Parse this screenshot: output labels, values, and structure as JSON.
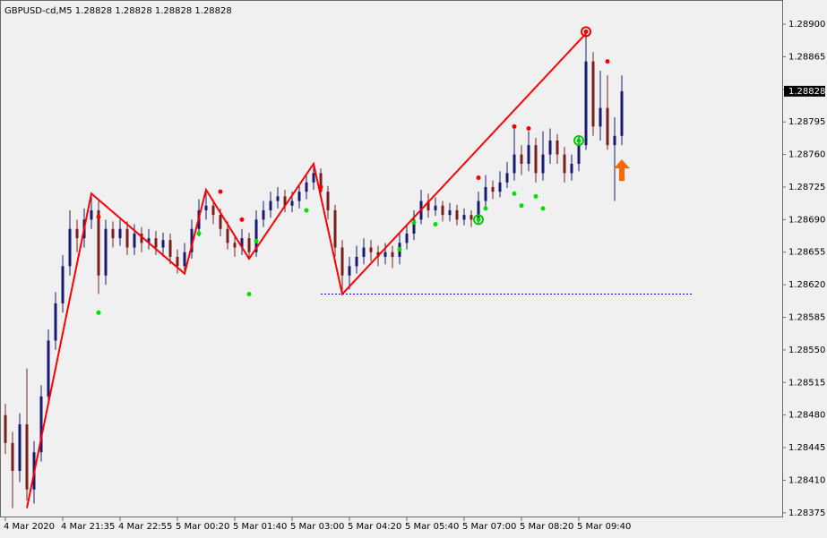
{
  "chart_data": {
    "type": "candlestick",
    "title": "GBPUSD-cd,M5  1.28828 1.28828 1.28828 1.28828",
    "categories": [
      "4 Mar 2020",
      null,
      null,
      null,
      null,
      null,
      null,
      null,
      "4 Mar 21:35",
      null,
      null,
      null,
      null,
      null,
      null,
      null,
      "4 Mar 22:55",
      null,
      null,
      null,
      null,
      null,
      null,
      null,
      "5 Mar 00:20",
      null,
      null,
      null,
      null,
      null,
      null,
      null,
      "5 Mar 01:40",
      null,
      null,
      null,
      null,
      null,
      null,
      null,
      "5 Mar 03:00",
      null,
      null,
      null,
      null,
      null,
      null,
      null,
      "5 Mar 04:20",
      null,
      null,
      null,
      null,
      null,
      null,
      null,
      "5 Mar 05:40",
      null,
      null,
      null,
      null,
      null,
      null,
      null,
      "5 Mar 07:00",
      null,
      null,
      null,
      null,
      null,
      null,
      null,
      "5 Mar 08:20",
      null,
      null,
      null,
      null,
      null,
      null,
      null,
      "5 Mar 09:40",
      null,
      null,
      null,
      null,
      null,
      null
    ],
    "open": [
      1.2848,
      1.2845,
      1.2842,
      1.2847,
      1.284,
      1.2844,
      1.285,
      1.2856,
      1.286,
      1.2864,
      1.2868,
      1.2867,
      1.2869,
      1.287,
      1.2863,
      1.2868,
      1.2867,
      1.2868,
      1.2866,
      1.28675,
      1.28665,
      1.2867,
      1.2866,
      1.28668,
      1.2865,
      1.2864,
      1.28655,
      1.2868,
      1.287,
      1.28705,
      1.28695,
      1.2868,
      1.28665,
      1.2866,
      1.2867,
      1.28655,
      1.2869,
      1.287,
      1.2871,
      1.28715,
      1.28705,
      1.2871,
      1.2872,
      1.2873,
      1.2874,
      1.2872,
      1.287,
      1.2866,
      1.2863,
      1.2864,
      1.2865,
      1.2866,
      1.28655,
      1.2865,
      1.28655,
      1.2865,
      1.28665,
      1.28675,
      1.2869,
      1.2871,
      1.287,
      1.28705,
      1.28695,
      1.287,
      1.2869,
      1.28695,
      1.2869,
      1.2871,
      1.28725,
      1.2872,
      1.2873,
      1.2874,
      1.2876,
      1.2875,
      1.2877,
      1.2874,
      1.2876,
      1.28775,
      1.2876,
      1.2874,
      1.2875,
      1.2877,
      1.2886,
      1.2879,
      1.2881,
      1.2877,
      1.2878
    ],
    "high": [
      1.28492,
      1.28462,
      1.28482,
      1.2853,
      1.28452,
      1.28512,
      1.28572,
      1.28612,
      1.28652,
      1.287,
      1.2869,
      1.28702,
      1.28718,
      1.2871,
      1.2869,
      1.28688,
      1.2869,
      1.28688,
      1.28685,
      1.28682,
      1.2868,
      1.28678,
      1.28676,
      1.28675,
      1.28658,
      1.28665,
      1.2869,
      1.28712,
      1.28722,
      1.28712,
      1.28702,
      1.28688,
      1.28672,
      1.2868,
      1.28676,
      1.287,
      1.2871,
      1.2872,
      1.28725,
      1.28722,
      1.2872,
      1.28728,
      1.2874,
      1.2875,
      1.28745,
      1.28726,
      1.28706,
      1.28668,
      1.2865,
      1.28662,
      1.2867,
      1.28668,
      1.28662,
      1.28665,
      1.28662,
      1.28675,
      1.28685,
      1.287,
      1.28722,
      1.28718,
      1.28714,
      1.2871,
      1.28708,
      1.28706,
      1.28702,
      1.287,
      1.2872,
      1.28738,
      1.28732,
      1.28742,
      1.28752,
      1.28788,
      1.2877,
      1.28785,
      1.28778,
      1.28785,
      1.28788,
      1.28782,
      1.28768,
      1.2876,
      1.2878,
      1.2889,
      1.2887,
      1.2885,
      1.28845,
      1.288,
      1.28845
    ],
    "low": [
      1.28438,
      1.2838,
      1.28408,
      1.28388,
      1.28385,
      1.2843,
      1.2849,
      1.2855,
      1.2859,
      1.2863,
      1.28655,
      1.2866,
      1.2868,
      1.2861,
      1.2862,
      1.2866,
      1.28662,
      1.28652,
      1.28652,
      1.28655,
      1.28658,
      1.28652,
      1.2865,
      1.28642,
      1.28632,
      1.28632,
      1.28648,
      1.28672,
      1.2869,
      1.28685,
      1.28672,
      1.28658,
      1.2865,
      1.28652,
      1.28648,
      1.2865,
      1.28682,
      1.28692,
      1.28702,
      1.28698,
      1.28698,
      1.28702,
      1.28712,
      1.28722,
      1.28712,
      1.2869,
      1.2865,
      1.2861,
      1.28615,
      1.28632,
      1.28642,
      1.28645,
      1.2864,
      1.28642,
      1.28638,
      1.28642,
      1.28658,
      1.28668,
      1.28685,
      1.28692,
      1.28694,
      1.28688,
      1.28688,
      1.28684,
      1.28684,
      1.28682,
      1.28686,
      1.28702,
      1.28712,
      1.28714,
      1.28724,
      1.28732,
      1.28738,
      1.28742,
      1.2873,
      1.28732,
      1.2875,
      1.2875,
      1.2873,
      1.28732,
      1.28742,
      1.28765,
      1.2878,
      1.28775,
      1.28765,
      1.2871,
      1.2877
    ],
    "close": [
      1.2845,
      1.2842,
      1.2847,
      1.284,
      1.2844,
      1.285,
      1.2856,
      1.286,
      1.2864,
      1.2868,
      1.2867,
      1.2869,
      1.287,
      1.2863,
      1.2868,
      1.2867,
      1.2868,
      1.2866,
      1.28675,
      1.28665,
      1.2867,
      1.2866,
      1.28668,
      1.2865,
      1.2864,
      1.28655,
      1.2868,
      1.287,
      1.28705,
      1.28695,
      1.2868,
      1.28665,
      1.2866,
      1.2867,
      1.28655,
      1.2869,
      1.287,
      1.2871,
      1.28715,
      1.28705,
      1.2871,
      1.2872,
      1.2873,
      1.2874,
      1.2872,
      1.287,
      1.2866,
      1.2863,
      1.2864,
      1.2865,
      1.2866,
      1.28655,
      1.2865,
      1.28655,
      1.2865,
      1.28665,
      1.28675,
      1.2869,
      1.2871,
      1.287,
      1.28705,
      1.28695,
      1.287,
      1.2869,
      1.28695,
      1.2869,
      1.2871,
      1.28725,
      1.2872,
      1.2873,
      1.2874,
      1.2876,
      1.2875,
      1.2877,
      1.2874,
      1.2876,
      1.28775,
      1.2876,
      1.2874,
      1.2875,
      1.2877,
      1.2886,
      1.2879,
      1.2881,
      1.2877,
      1.2878,
      1.28828
    ],
    "up_color": "#1a1a6e",
    "down_color": "#7a1f1f",
    "ylim": [
      1.2837,
      1.28926
    ],
    "yticks": [
      {
        "value": 1.289,
        "label": "1.28900"
      },
      {
        "value": 1.28865,
        "label": "1.28865"
      },
      {
        "value": 1.2883,
        "label": "1.28830"
      },
      {
        "value": 1.28795,
        "label": "1.28795"
      },
      {
        "value": 1.2876,
        "label": "1.28760"
      },
      {
        "value": 1.28725,
        "label": "1.28725"
      },
      {
        "value": 1.2869,
        "label": "1.28690"
      },
      {
        "value": 1.28655,
        "label": "1.28655"
      },
      {
        "value": 1.2862,
        "label": "1.28620"
      },
      {
        "value": 1.28585,
        "label": "1.28585"
      },
      {
        "value": 1.2855,
        "label": "1.28550"
      },
      {
        "value": 1.28515,
        "label": "1.28515"
      },
      {
        "value": 1.2848,
        "label": "1.28480"
      },
      {
        "value": 1.28445,
        "label": "1.28445"
      },
      {
        "value": 1.2841,
        "label": "1.28410"
      },
      {
        "value": 1.28375,
        "label": "1.28375"
      }
    ],
    "current_price": {
      "value": 1.28828,
      "label": "1.28828"
    },
    "zigzag": {
      "color": "#ff0000",
      "x": [
        3,
        12,
        25,
        28,
        34,
        43,
        47,
        81
      ],
      "values": [
        1.2838,
        1.28718,
        1.28632,
        1.28722,
        1.28648,
        1.2875,
        1.2861,
        1.2889
      ]
    },
    "level": {
      "value": 1.2861,
      "x": [
        44,
        96
      ],
      "color": "#0000cc"
    },
    "sell_dots": {
      "color": "#ee0000",
      "x": [
        13,
        30,
        33,
        44,
        66,
        71,
        73,
        84
      ],
      "values": [
        1.28693,
        1.2872,
        1.2869,
        1.28725,
        1.28735,
        1.2879,
        1.28788,
        1.2886
      ]
    },
    "buy_dots": {
      "color": "#00dd00",
      "x": [
        13,
        27,
        34,
        35,
        42,
        55,
        57,
        60,
        67,
        71,
        72,
        74,
        75
      ],
      "values": [
        1.2859,
        1.28675,
        1.2861,
        1.28667,
        1.287,
        1.28658,
        1.28687,
        1.28685,
        1.28702,
        1.28718,
        1.28705,
        1.28715,
        1.28702
      ]
    },
    "rings": [
      {
        "x": 81,
        "value": 1.28892,
        "color": "#ee0000"
      },
      {
        "x": 66,
        "value": 1.2869,
        "color": "#00cc00"
      },
      {
        "x": 80,
        "value": 1.28775,
        "color": "#00cc00"
      }
    ],
    "arrow": {
      "x": 86,
      "value": 1.28745,
      "color": "#ff6600"
    }
  }
}
